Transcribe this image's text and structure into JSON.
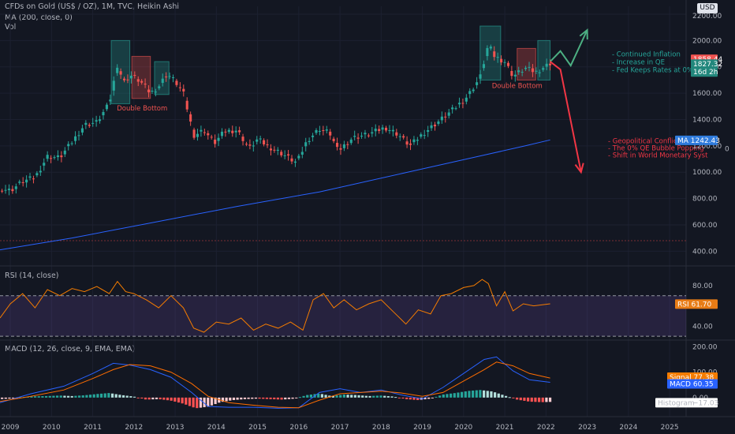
{
  "header": {
    "title": "CFDs on Gold (US$ / OZ), 1M, TVC, Heikin Ashi",
    "ma_label": "MA (200, close, 0)",
    "vol_label": "Vol",
    "currency": "USD"
  },
  "colors": {
    "background": "#131722",
    "up": "#26a69a",
    "down": "#ef5350",
    "ma": "#2962ff",
    "rsi": "#f57c00",
    "rsi_band": "#7e57c2",
    "macd": "#2962ff",
    "signal": "#ff6d00",
    "bullish_arrow": "#4caf82",
    "bearish_arrow": "#f23645"
  },
  "chart_data": [
    {
      "type": "candlestick",
      "name": "price",
      "y_ticks": [
        "2200.00",
        "2000.00",
        "1800.00",
        "1600.00",
        "1400.00",
        "1200.00",
        "1000.00",
        "800.00",
        "600.00",
        "400.00"
      ],
      "y_tick_values": [
        2200,
        2000,
        1800,
        1600,
        1400,
        1200,
        1000,
        800,
        600,
        400
      ],
      "ylim": [
        300,
        2260
      ],
      "x_ticks": [
        "2009",
        "2010",
        "2011",
        "2012",
        "2013",
        "2014",
        "2015",
        "2016",
        "2017",
        "2018",
        "2019",
        "2020",
        "2021",
        "2022",
        "2023",
        "2024",
        "2025"
      ],
      "x_tick_values": [
        2009,
        2010,
        2011,
        2012,
        2013,
        2014,
        2015,
        2016,
        2017,
        2018,
        2019,
        2020,
        2021,
        2022,
        2023,
        2024,
        2025
      ],
      "xlim": [
        2008.75,
        2025.4
      ],
      "price_path": [
        [
          2008.75,
          880
        ],
        [
          2009.0,
          860
        ],
        [
          2009.3,
          930
        ],
        [
          2009.6,
          960
        ],
        [
          2009.9,
          1120
        ],
        [
          2010.2,
          1110
        ],
        [
          2010.5,
          1230
        ],
        [
          2010.8,
          1360
        ],
        [
          2011.1,
          1380
        ],
        [
          2011.4,
          1520
        ],
        [
          2011.6,
          1820
        ],
        [
          2011.75,
          1680
        ],
        [
          2011.9,
          1740
        ],
        [
          2012.15,
          1690
        ],
        [
          2012.4,
          1600
        ],
        [
          2012.6,
          1650
        ],
        [
          2012.8,
          1750
        ],
        [
          2013.0,
          1690
        ],
        [
          2013.2,
          1600
        ],
        [
          2013.45,
          1280
        ],
        [
          2013.7,
          1320
        ],
        [
          2013.95,
          1220
        ],
        [
          2014.2,
          1310
        ],
        [
          2014.5,
          1320
        ],
        [
          2014.8,
          1180
        ],
        [
          2015.0,
          1250
        ],
        [
          2015.3,
          1190
        ],
        [
          2015.6,
          1140
        ],
        [
          2015.95,
          1070
        ],
        [
          2016.2,
          1240
        ],
        [
          2016.5,
          1330
        ],
        [
          2016.75,
          1300
        ],
        [
          2016.95,
          1160
        ],
        [
          2017.3,
          1260
        ],
        [
          2017.7,
          1290
        ],
        [
          2018.1,
          1340
        ],
        [
          2018.4,
          1290
        ],
        [
          2018.7,
          1200
        ],
        [
          2019.0,
          1290
        ],
        [
          2019.45,
          1400
        ],
        [
          2019.8,
          1490
        ],
        [
          2020.1,
          1580
        ],
        [
          2020.4,
          1720
        ],
        [
          2020.6,
          1970
        ],
        [
          2020.75,
          1880
        ],
        [
          2021.0,
          1840
        ],
        [
          2021.2,
          1730
        ],
        [
          2021.5,
          1790
        ],
        [
          2021.75,
          1760
        ],
        [
          2022.1,
          1828
        ]
      ],
      "last_close": "1827.32",
      "countdown": "16d 2h",
      "price_tag": "1858.44",
      "ma_tag_label": "MA",
      "ma_tag_value": "1242.43",
      "ma_path": [
        [
          2008.75,
          410
        ],
        [
          2010.5,
          500
        ],
        [
          2012.5,
          620
        ],
        [
          2014.5,
          740
        ],
        [
          2016.5,
          850
        ],
        [
          2018.5,
          990
        ],
        [
          2020.5,
          1130
        ],
        [
          2021.5,
          1200
        ],
        [
          2022.1,
          1245
        ]
      ],
      "patterns": [
        {
          "label": "Double Bottom",
          "zones": [
            {
              "x": [
                2011.45,
                2011.9
              ],
              "y": [
                1520,
                2000
              ],
              "tone": "up"
            },
            {
              "x": [
                2011.95,
                2012.4
              ],
              "y": [
                1560,
                1880
              ],
              "tone": "down"
            },
            {
              "x": [
                2012.5,
                2012.85
              ],
              "y": [
                1590,
                1840
              ],
              "tone": "up"
            }
          ],
          "label_at": [
            2012.2,
            1470
          ]
        },
        {
          "label": "Double Bottom",
          "zones": [
            {
              "x": [
                2020.4,
                2020.9
              ],
              "y": [
                1700,
                2110
              ],
              "tone": "up"
            },
            {
              "x": [
                2021.3,
                2021.75
              ],
              "y": [
                1700,
                1940
              ],
              "tone": "down"
            },
            {
              "x": [
                2021.8,
                2022.1
              ],
              "y": [
                1700,
                2000
              ],
              "tone": "up"
            }
          ],
          "label_at": [
            2021.3,
            1640
          ]
        }
      ],
      "forecast_up": [
        [
          2022.1,
          1840
        ],
        [
          2022.35,
          1920
        ],
        [
          2022.6,
          1810
        ],
        [
          2023.0,
          2080
        ]
      ],
      "forecast_down": [
        [
          2022.1,
          1840
        ],
        [
          2022.35,
          1780
        ],
        [
          2022.85,
          1000
        ]
      ],
      "bullish_notes": [
        "- Continued Inflation",
        "- Increase in QE",
        "- Fed Keeps Rates at 0%"
      ],
      "bearish_notes": [
        "- Geopolitical Conflicts",
        "- The 0% QE Bubble Popping",
        "- Shift in World Monetary Syst"
      ],
      "right_marker": "0"
    },
    {
      "type": "line",
      "name": "RSI (14, close)",
      "y_ticks": [
        "80.00",
        "60.00",
        "40.00"
      ],
      "y_tick_values": [
        80,
        60,
        40
      ],
      "ylim": [
        27,
        97
      ],
      "band": [
        30,
        70
      ],
      "tag_label": "RSI",
      "tag_value": "61.70",
      "x": [
        2008.75,
        2009.0,
        2009.3,
        2009.6,
        2009.9,
        2010.2,
        2010.5,
        2010.8,
        2011.1,
        2011.4,
        2011.6,
        2011.8,
        2012.0,
        2012.3,
        2012.6,
        2012.9,
        2013.2,
        2013.45,
        2013.7,
        2014.0,
        2014.3,
        2014.6,
        2014.9,
        2015.2,
        2015.5,
        2015.8,
        2016.1,
        2016.35,
        2016.6,
        2016.85,
        2017.1,
        2017.4,
        2017.7,
        2018.0,
        2018.3,
        2018.6,
        2018.9,
        2019.2,
        2019.45,
        2019.7,
        2020.0,
        2020.25,
        2020.45,
        2020.6,
        2020.8,
        2021.0,
        2021.2,
        2021.45,
        2021.7,
        2022.1
      ],
      "values": [
        48,
        62,
        72,
        58,
        76,
        70,
        77,
        74,
        79,
        72,
        84,
        74,
        72,
        66,
        58,
        70,
        58,
        38,
        34,
        44,
        42,
        48,
        36,
        42,
        38,
        44,
        36,
        66,
        72,
        58,
        66,
        56,
        62,
        66,
        54,
        42,
        56,
        52,
        70,
        72,
        78,
        80,
        86,
        82,
        60,
        74,
        55,
        62,
        60,
        62
      ]
    },
    {
      "type": "line",
      "name": "MACD (12, 26, close, 9, EMA, EMA)",
      "y_ticks": [
        "200.00",
        "100.00",
        "0.00"
      ],
      "y_tick_values": [
        200,
        100,
        0
      ],
      "ylim": [
        -75,
        220
      ],
      "signal_tag_label": "Signal",
      "signal_tag_value": "77.38",
      "macd_tag_label": "MACD",
      "macd_tag_value": "60.35",
      "hist_tag_label": "Histogram",
      "hist_tag_value": "−17.03",
      "x": [
        2008.75,
        2009.5,
        2010.3,
        2011.0,
        2011.5,
        2011.9,
        2012.4,
        2012.9,
        2013.4,
        2013.8,
        2014.3,
        2014.9,
        2015.5,
        2016.0,
        2016.5,
        2017.0,
        2017.5,
        2018.0,
        2018.5,
        2019.0,
        2019.5,
        2020.0,
        2020.5,
        2020.8,
        2021.2,
        2021.6,
        2022.1
      ],
      "macd": [
        -20,
        15,
        45,
        95,
        135,
        128,
        110,
        80,
        20,
        -35,
        -38,
        -38,
        -42,
        -40,
        20,
        35,
        20,
        30,
        10,
        -5,
        40,
        95,
        150,
        160,
        105,
        70,
        60
      ],
      "signal": [
        -15,
        5,
        30,
        75,
        110,
        130,
        125,
        100,
        55,
        5,
        -20,
        -30,
        -38,
        -40,
        -10,
        15,
        20,
        25,
        18,
        5,
        20,
        65,
        110,
        140,
        125,
        95,
        77
      ],
      "hist_x": [
        2008.75,
        2009.0,
        2009.3,
        2009.6,
        2009.9,
        2010.2,
        2010.5,
        2010.8,
        2011.1,
        2011.4,
        2011.7,
        2012.0,
        2012.3,
        2012.6,
        2012.9,
        2013.2,
        2013.5,
        2013.8,
        2014.1,
        2014.4,
        2014.7,
        2015.0,
        2015.3,
        2015.6,
        2015.9,
        2016.2,
        2016.5,
        2016.8,
        2017.1,
        2017.4,
        2017.7,
        2018.0,
        2018.3,
        2018.6,
        2018.9,
        2019.2,
        2019.5,
        2019.8,
        2020.1,
        2020.4,
        2020.7,
        2021.0,
        2021.3,
        2021.6,
        2021.9,
        2022.1
      ],
      "histogram": [
        -6,
        -4,
        2,
        5,
        6,
        8,
        6,
        9,
        14,
        18,
        10,
        4,
        -8,
        -6,
        -12,
        -24,
        -42,
        -36,
        -18,
        -10,
        -6,
        -4,
        -6,
        -8,
        -4,
        10,
        16,
        6,
        12,
        10,
        6,
        8,
        4,
        -6,
        -10,
        -4,
        12,
        18,
        26,
        30,
        24,
        8,
        -8,
        -16,
        -18,
        -17
      ]
    }
  ]
}
